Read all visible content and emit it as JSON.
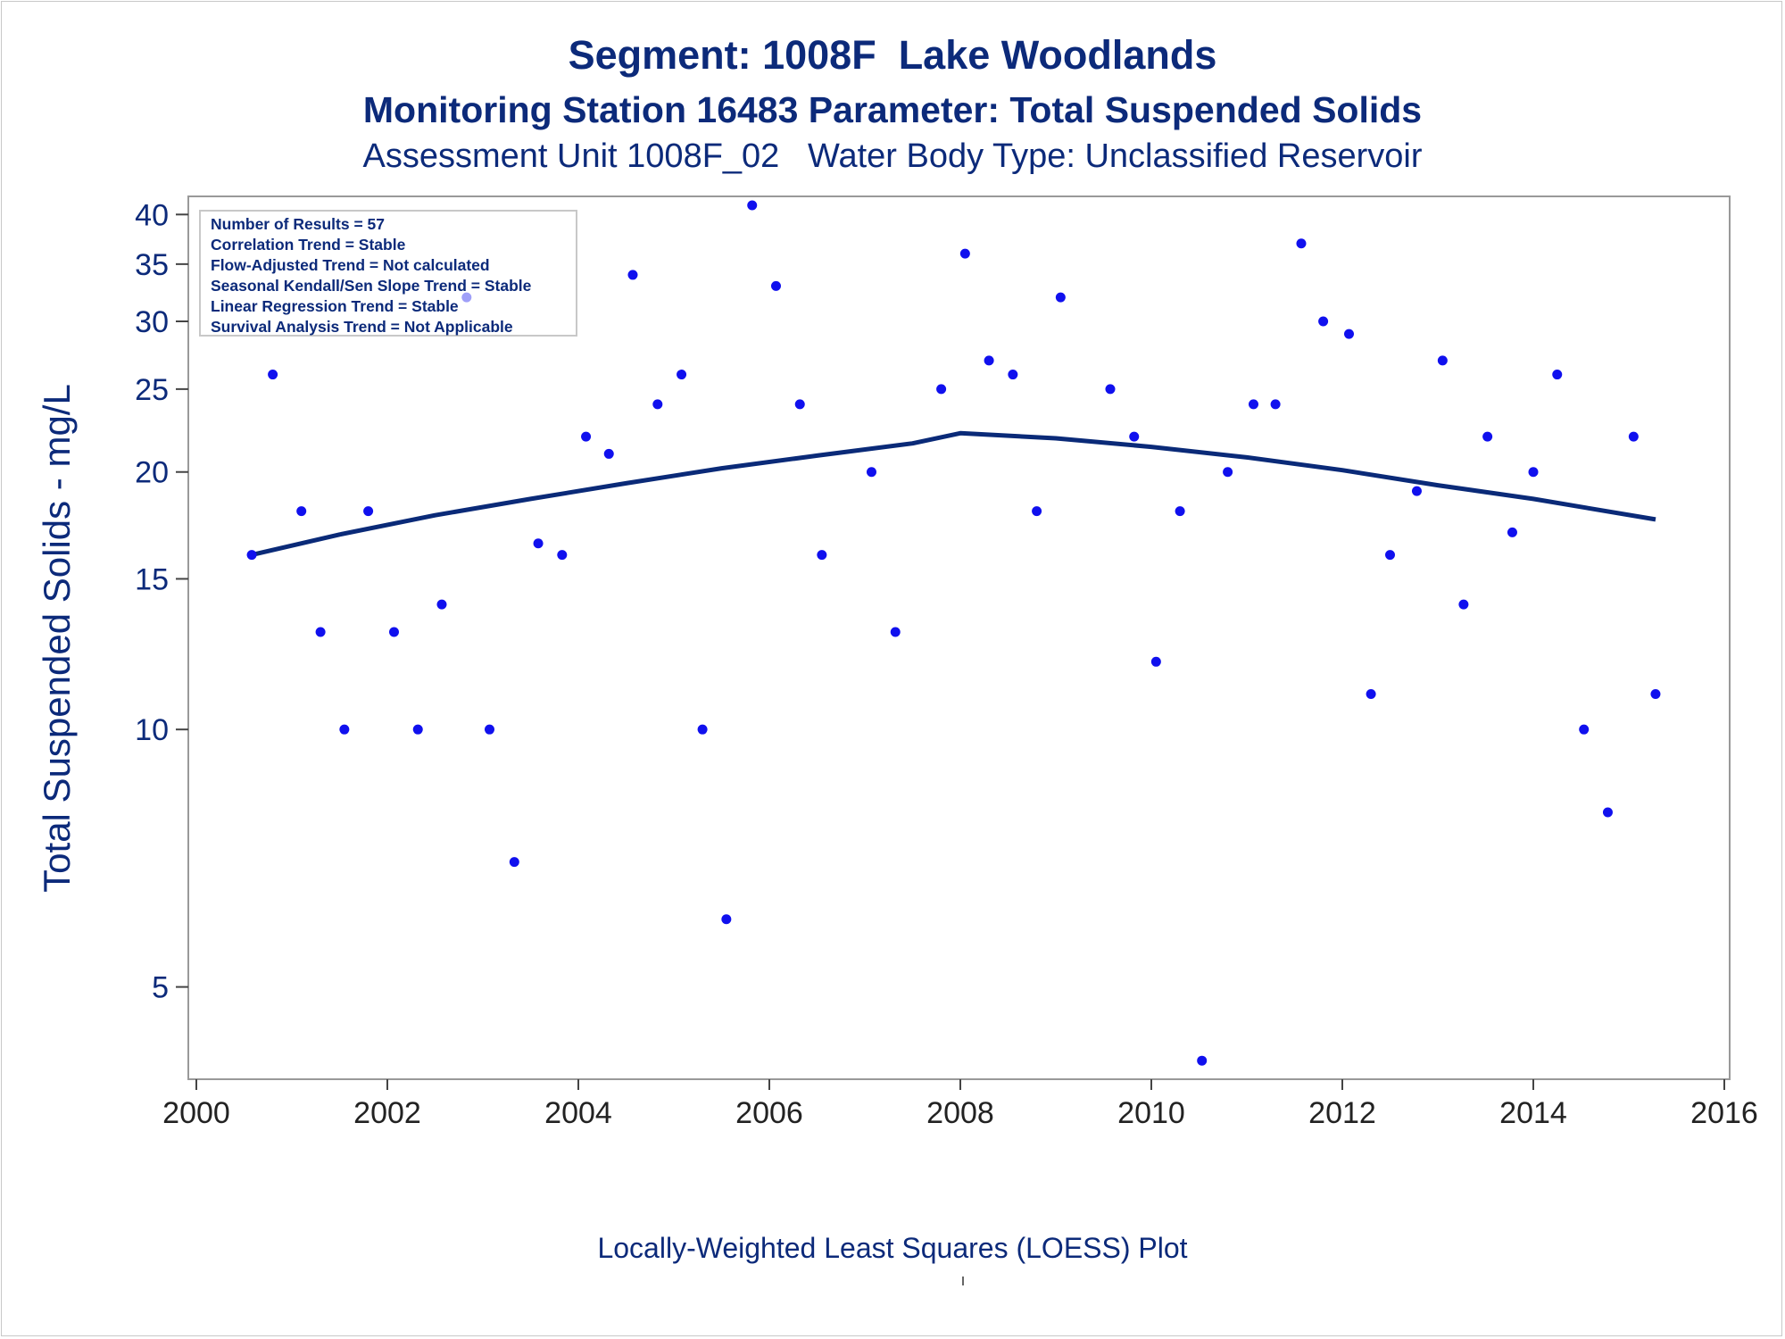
{
  "titles": {
    "line1": "Segment: 1008F  Lake Woodlands",
    "line2": "Monitoring Station 16483 Parameter: Total Suspended Solids",
    "line3": "Assessment Unit 1008F_02   Water Body Type: Unclassified Reservoir"
  },
  "footnote": "Locally-Weighted Least Squares (LOESS) Plot",
  "colors": {
    "text": "#0c2a7a",
    "points": "#1010ee",
    "loess": "#0a2a78",
    "frame": "#999999"
  },
  "chart_data": {
    "type": "scatter",
    "title": "",
    "xlabel": "",
    "ylabel": "Total Suspended Solids - mg/L",
    "yscale": "log",
    "xlim": [
      2000,
      2016
    ],
    "ylim": [
      3.9,
      42
    ],
    "xticks": [
      2000,
      2002,
      2004,
      2006,
      2008,
      2010,
      2012,
      2014,
      2016
    ],
    "yticks": [
      5,
      10,
      15,
      20,
      25,
      30,
      35,
      40
    ],
    "grid": false,
    "legend_box": {
      "placement": "top-left",
      "lines": [
        "Number of Results = 57",
        "Correlation Trend = Stable",
        "Flow-Adjusted Trend = Not calculated",
        "Seasonal Kendall/Sen Slope Trend = Stable",
        "Linear Regression Trend = Stable",
        "Survival Analysis Trend = Not Applicable"
      ]
    },
    "series": [
      {
        "type": "scatter",
        "points": [
          [
            2000.58,
            16
          ],
          [
            2000.8,
            26
          ],
          [
            2001.1,
            18
          ],
          [
            2001.3,
            13
          ],
          [
            2001.55,
            10
          ],
          [
            2001.8,
            18
          ],
          [
            2002.07,
            13
          ],
          [
            2002.32,
            10
          ],
          [
            2002.57,
            14
          ],
          [
            2002.83,
            32
          ],
          [
            2003.07,
            10
          ],
          [
            2003.33,
            7
          ],
          [
            2003.58,
            16.5
          ],
          [
            2003.83,
            16
          ],
          [
            2004.08,
            22
          ],
          [
            2004.32,
            21
          ],
          [
            2004.57,
            34
          ],
          [
            2004.83,
            24
          ],
          [
            2005.08,
            26
          ],
          [
            2005.3,
            10
          ],
          [
            2005.55,
            6
          ],
          [
            2005.82,
            41
          ],
          [
            2006.07,
            33
          ],
          [
            2006.32,
            24
          ],
          [
            2006.55,
            16
          ],
          [
            2007.07,
            20
          ],
          [
            2007.32,
            13
          ],
          [
            2007.8,
            25
          ],
          [
            2008.05,
            36
          ],
          [
            2008.3,
            27
          ],
          [
            2008.55,
            26
          ],
          [
            2008.8,
            18
          ],
          [
            2009.05,
            32
          ],
          [
            2009.57,
            25
          ],
          [
            2009.82,
            22
          ],
          [
            2010.05,
            12
          ],
          [
            2010.3,
            18
          ],
          [
            2010.53,
            4.1
          ],
          [
            2010.8,
            20
          ],
          [
            2011.07,
            24
          ],
          [
            2011.3,
            24
          ],
          [
            2011.57,
            37
          ],
          [
            2011.8,
            30
          ],
          [
            2012.07,
            29
          ],
          [
            2012.3,
            11
          ],
          [
            2012.5,
            16
          ],
          [
            2012.78,
            19
          ],
          [
            2013.05,
            27
          ],
          [
            2013.27,
            14
          ],
          [
            2013.52,
            22
          ],
          [
            2013.78,
            17
          ],
          [
            2014.0,
            20
          ],
          [
            2014.25,
            26
          ],
          [
            2014.53,
            10
          ],
          [
            2014.78,
            8
          ],
          [
            2015.05,
            22
          ],
          [
            2015.28,
            11
          ]
        ]
      },
      {
        "type": "line",
        "points": [
          [
            2000.58,
            16
          ],
          [
            2001.5,
            16.9
          ],
          [
            2002.5,
            17.8
          ],
          [
            2003.5,
            18.6
          ],
          [
            2004.5,
            19.4
          ],
          [
            2005.5,
            20.2
          ],
          [
            2006.5,
            20.9
          ],
          [
            2007.5,
            21.6
          ],
          [
            2008.0,
            22.2
          ],
          [
            2009.0,
            21.9
          ],
          [
            2010.0,
            21.4
          ],
          [
            2011.0,
            20.8
          ],
          [
            2012.0,
            20.1
          ],
          [
            2013.0,
            19.3
          ],
          [
            2014.0,
            18.6
          ],
          [
            2015.28,
            17.6
          ]
        ]
      }
    ]
  }
}
